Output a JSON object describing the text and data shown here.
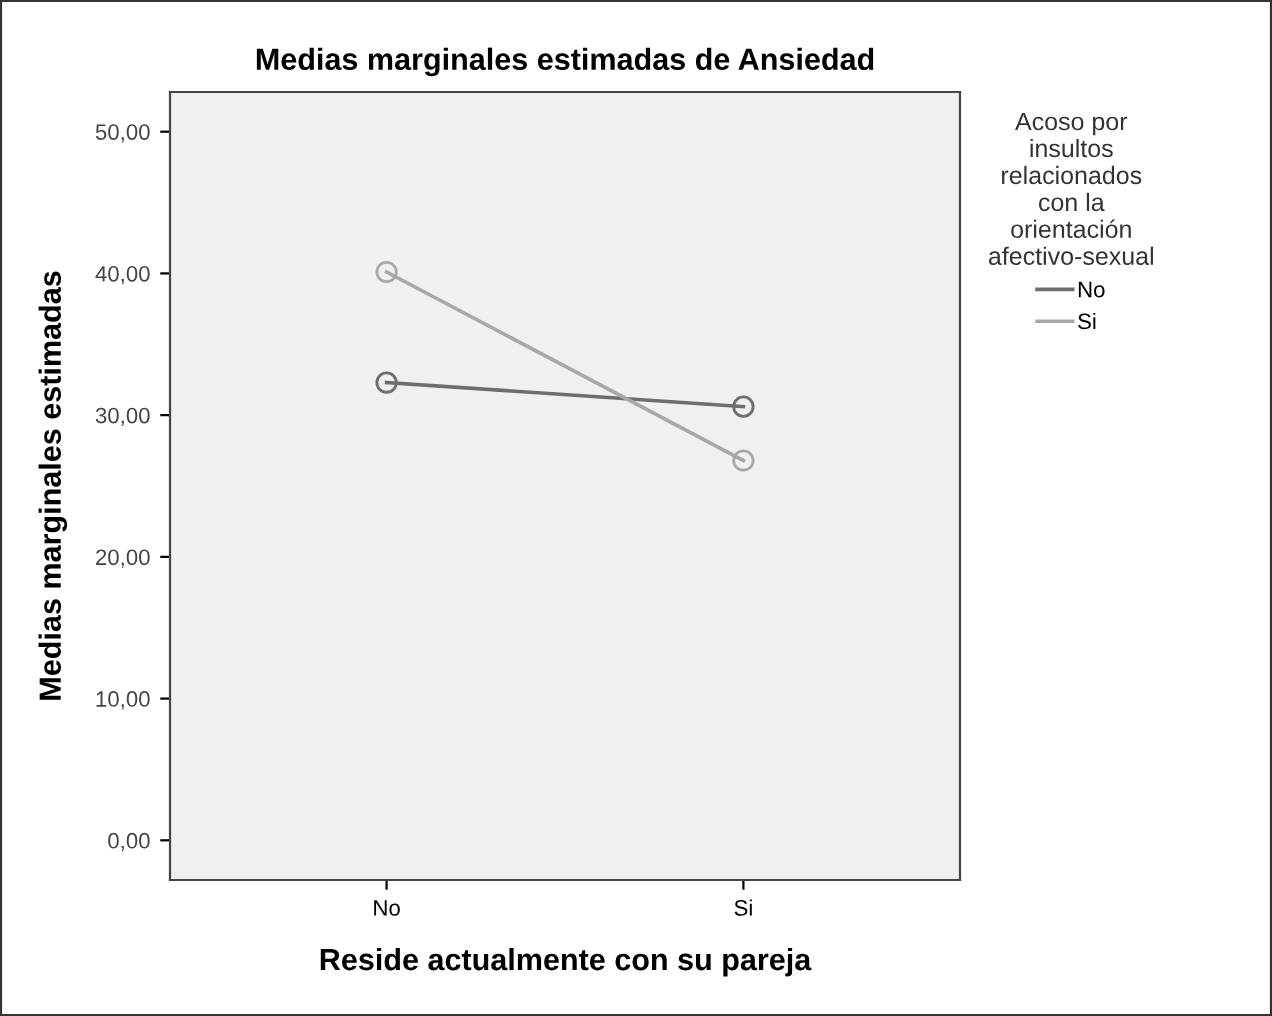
{
  "chart_data": {
    "type": "line",
    "title": "Medias marginales estimadas de Ansiedad",
    "xlabel": "Reside actualmente con su pareja",
    "ylabel": "Medias marginales estimadas",
    "legend_title": "Acoso por\ninsultos\nrelacionados\ncon la\norientación\nafectivo-sexual",
    "categories": [
      "No",
      "Si"
    ],
    "series": [
      {
        "name": "No",
        "color": "#6e6e6e",
        "values": [
          32.3,
          30.6
        ]
      },
      {
        "name": "Si",
        "color": "#a8a8a8",
        "values": [
          40.1,
          26.8
        ]
      }
    ],
    "ylim": [
      -2.8,
      52.8
    ],
    "yticks": [
      {
        "value": 0,
        "label": "0,00"
      },
      {
        "value": 10,
        "label": "10,00"
      },
      {
        "value": 20,
        "label": "20,00"
      },
      {
        "value": 30,
        "label": "30,00"
      },
      {
        "value": 40,
        "label": "40,00"
      },
      {
        "value": 50,
        "label": "50,00"
      }
    ],
    "grid": false,
    "legend": "right",
    "marker": "circle",
    "line_style": "solid"
  }
}
